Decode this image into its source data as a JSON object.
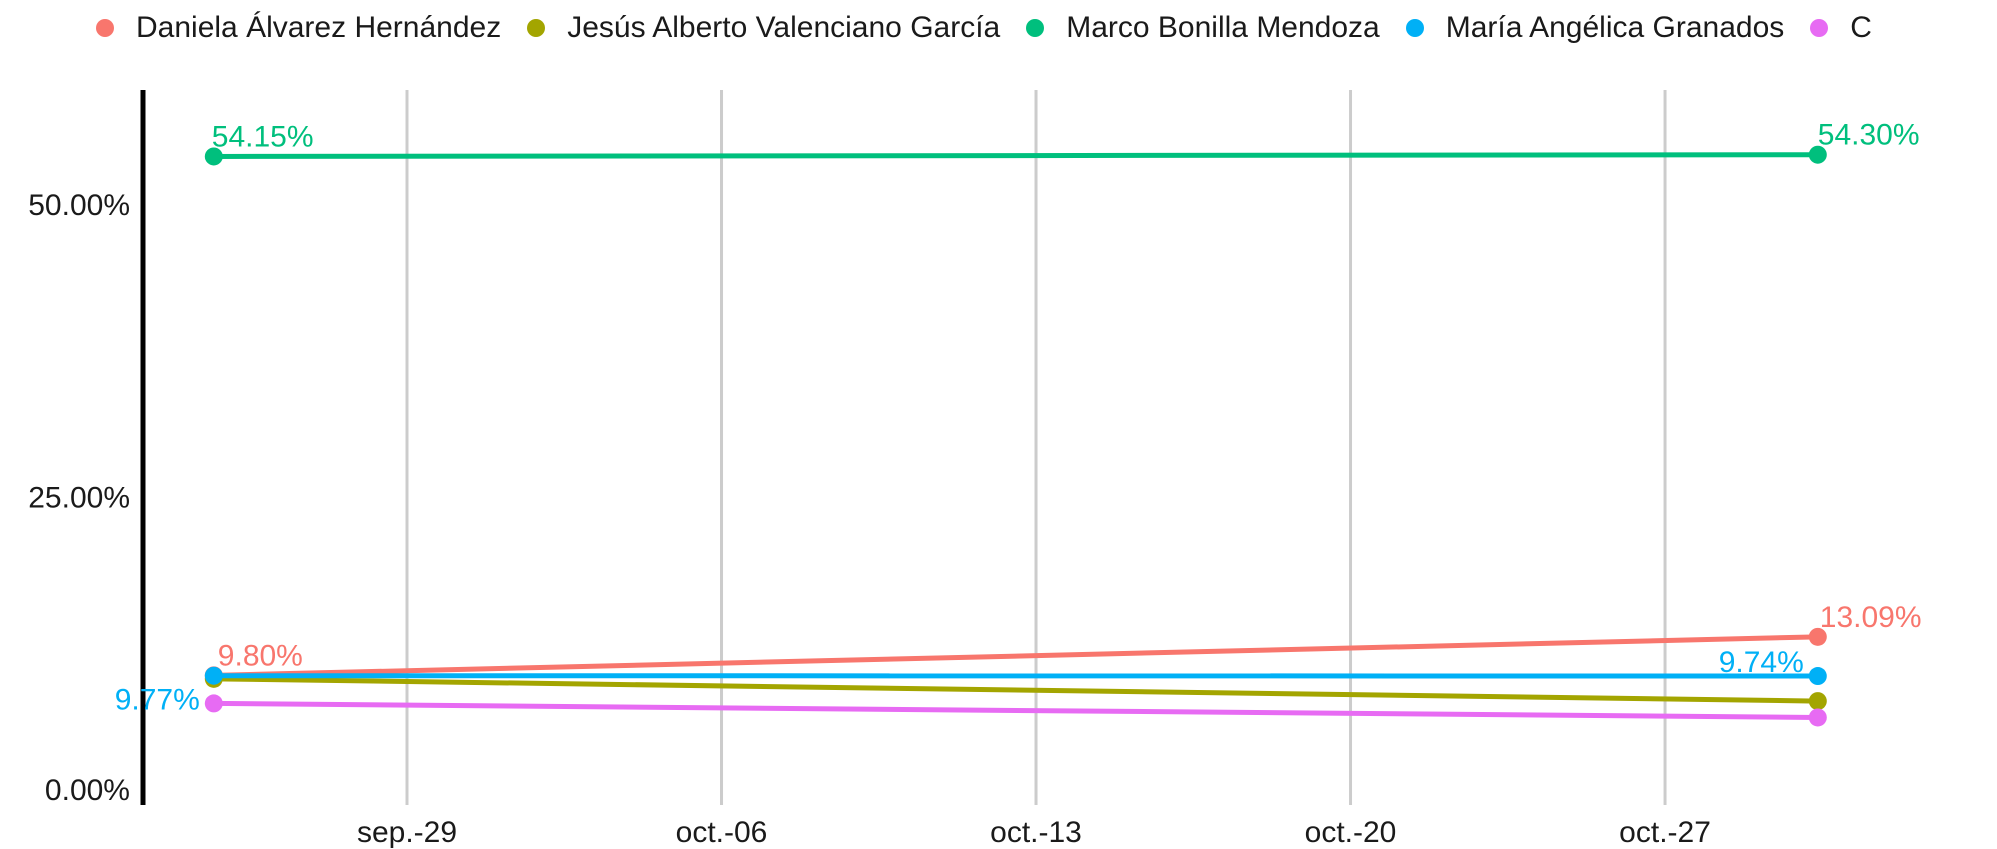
{
  "chart_data": {
    "type": "line",
    "title": "",
    "xlabel": "",
    "ylabel": "",
    "x_tick_labels": [
      "sep.-29",
      "oct.-06",
      "oct.-13",
      "oct.-20",
      "oct.-27"
    ],
    "x_tick_days": [
      29,
      36,
      43,
      50,
      57
    ],
    "x_points_days": [
      24.7,
      60.4
    ],
    "y_tick_values": [
      0,
      25,
      50
    ],
    "y_tick_labels": [
      "0.00%",
      "25.00%",
      "50.00%"
    ],
    "ylim": [
      0,
      58.5
    ],
    "grid": "vertical",
    "legend_position": "top",
    "series": [
      {
        "name": "Daniela Álvarez Hernández",
        "color": "#F8766D",
        "values": [
          9.8,
          13.09
        ],
        "labels": [
          "9.80%",
          "13.09%"
        ]
      },
      {
        "name": "Jesús Alberto Valenciano García",
        "color": "#A3A500",
        "values": [
          9.5,
          7.6
        ],
        "labels": [
          "",
          ""
        ]
      },
      {
        "name": "Marco Bonilla  Mendoza",
        "color": "#00BF7D",
        "values": [
          54.15,
          54.3
        ],
        "labels": [
          "54.15%",
          "54.30%"
        ]
      },
      {
        "name": "María Angélica Granados",
        "color": "#00B0F6",
        "values": [
          9.77,
          9.74
        ],
        "labels": [
          "9.77%",
          "9.74%"
        ]
      },
      {
        "name": "C",
        "color": "#E76BF3",
        "values": [
          7.4,
          6.2
        ],
        "labels": [
          "",
          ""
        ]
      }
    ]
  }
}
